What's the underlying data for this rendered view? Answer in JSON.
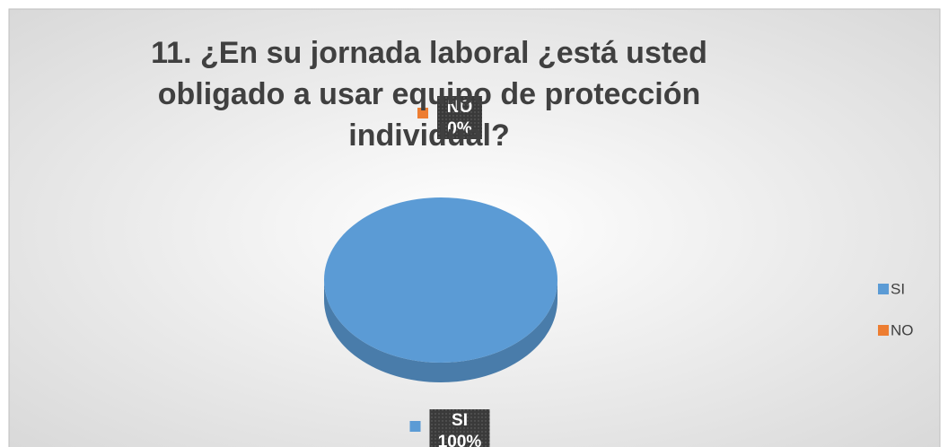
{
  "chart_data": {
    "type": "pie",
    "title": "11.  ¿En su jornada laboral ¿está usted obligado a usar equipo de protección individual?",
    "categories": [
      "SI",
      "NO"
    ],
    "values": [
      100,
      0
    ],
    "value_labels": [
      "100%",
      "0%"
    ],
    "colors": [
      "#5b9bd5",
      "#ed7d31"
    ],
    "legend": "right"
  }
}
